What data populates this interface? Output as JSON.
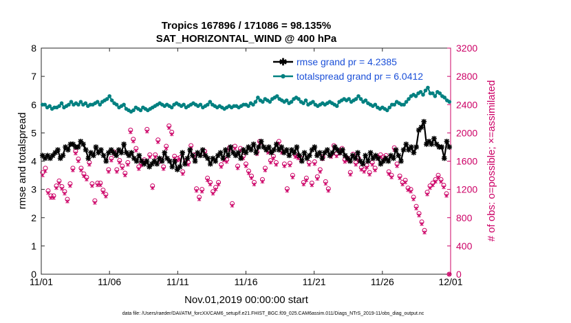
{
  "chart_data": {
    "type": "line",
    "title_line1": "Tropics 167896 / 171086 = 98.135%",
    "title_line2": "SAT_HORIZONTAL_WIND @ 400 hPa",
    "xlabel": "Nov.01,2019 00:00:00 start",
    "ylabel_left": "rmse and totalspread",
    "ylabel_right": "# of obs: o=possible; ×=assimilated",
    "footer": "data file: /Users/raeder/DAI/ATM_forcXX/CAM6_setup/f.e21.FHIST_BGC.f09_025.CAM6assim.011/Diags_NTrS_2019-11/obs_diag_output.nc",
    "xlim": [
      0,
      30
    ],
    "ylim_left": [
      0,
      8
    ],
    "ylim_right": [
      0,
      3200
    ],
    "x_ticks": [
      0,
      5,
      10,
      15,
      20,
      25,
      30
    ],
    "x_tick_labels": [
      "11/01",
      "11/06",
      "11/11",
      "11/16",
      "11/21",
      "11/26",
      "12/01"
    ],
    "y_ticks_left": [
      0,
      1,
      2,
      3,
      4,
      5,
      6,
      7,
      8
    ],
    "y_ticks_left_labels": [
      "0",
      "1",
      "2",
      "3",
      "4",
      "5",
      "6",
      "7",
      "8"
    ],
    "y_ticks_right": [
      0,
      400,
      800,
      1200,
      1600,
      2000,
      2400,
      2800,
      3200
    ],
    "y_ticks_right_labels": [
      "0",
      "400",
      "800",
      "1200",
      "1600",
      "2000",
      "2400",
      "2800",
      "3200"
    ],
    "colors": {
      "rmse": "#000000",
      "spread": "#008080",
      "obs": "#cc0066",
      "right_axis": "#cc0066"
    },
    "series": [
      {
        "name": "rmse grand pr = 4.2385",
        "axis": "left",
        "values": [
          4.2,
          4.1,
          4.2,
          4.1,
          4.2,
          4.3,
          4.4,
          4.1,
          4.2,
          4.5,
          4.4,
          4.6,
          4.6,
          4.5,
          4.5,
          4.7,
          4.6,
          4.4,
          4.1,
          4.3,
          4.2,
          4.5,
          4.3,
          4.4,
          4.2,
          4.0,
          4.3,
          4.4,
          4.3,
          4.2,
          4.4,
          4.3,
          4.6,
          4.3,
          4.2,
          4.3,
          4.1,
          4.0,
          4.2,
          4.0,
          3.9,
          4.0,
          3.8,
          3.9,
          4.0,
          3.9,
          4.1,
          4.0,
          4.3,
          4.1,
          4.0,
          3.8,
          4.0,
          3.7,
          3.8,
          4.3,
          3.9,
          4.1,
          4.4,
          4.2,
          4.0,
          4.3,
          4.2,
          4.4,
          4.2,
          4.1,
          3.9,
          4.1,
          4.0,
          4.2,
          4.3,
          4.1,
          4.4,
          4.2,
          4.5,
          4.3,
          4.2,
          4.3,
          4.1,
          4.4,
          4.3,
          4.5,
          4.4,
          4.6,
          4.3,
          4.5,
          4.7,
          4.5,
          4.4,
          4.5,
          4.3,
          4.4,
          4.6,
          4.4,
          4.5,
          4.3,
          4.4,
          4.2,
          4.4,
          4.3,
          4.5,
          4.2,
          4.0,
          4.3,
          4.1,
          4.2,
          4.4,
          4.5,
          4.2,
          4.3,
          4.1,
          4.3,
          4.4,
          4.2,
          4.3,
          4.5,
          4.4,
          4.3,
          4.4,
          4.2,
          4.1,
          4.0,
          4.2,
          4.1,
          4.3,
          4.0,
          3.9,
          4.2,
          4.0,
          4.3,
          4.1,
          4.2,
          4.1,
          3.9,
          4.0,
          4.1,
          4.0,
          4.2,
          4.1,
          4.4,
          4.2,
          4.0,
          4.4,
          4.6,
          4.4,
          4.5,
          4.3,
          4.5,
          5.1,
          5.2,
          5.4,
          4.6,
          4.7,
          4.6,
          4.8,
          4.6,
          4.5,
          4.5,
          4.1,
          4.7,
          4.5
        ]
      },
      {
        "name": "totalspread grand pr = 6.0412",
        "axis": "left",
        "values": [
          6.0,
          6.0,
          5.9,
          5.95,
          5.85,
          5.9,
          5.9,
          5.95,
          6.05,
          5.9,
          5.95,
          6.0,
          6.1,
          6.0,
          6.05,
          6.0,
          6.1,
          6.0,
          6.05,
          5.95,
          6.0,
          6.0,
          6.05,
          6.1,
          6.0,
          6.1,
          6.15,
          6.2,
          6.3,
          6.15,
          6.05,
          6.0,
          5.9,
          5.95,
          6.0,
          5.85,
          5.8,
          5.75,
          5.8,
          5.9,
          5.85,
          5.8,
          5.9,
          5.85,
          5.8,
          5.85,
          5.9,
          5.95,
          6.0,
          6.05,
          6.0,
          5.95,
          6.0,
          5.95,
          5.9,
          6.0,
          6.05,
          6.0,
          5.95,
          6.0,
          5.9,
          5.95,
          6.0,
          6.05,
          6.0,
          5.95,
          6.0,
          5.9,
          5.95,
          6.0,
          6.1,
          6.0,
          5.95,
          5.9,
          5.95,
          5.9,
          5.85,
          5.9,
          5.95,
          5.9,
          5.95,
          5.95,
          5.9,
          5.95,
          6.0,
          6.0,
          5.95,
          6.05,
          6.0,
          6.1,
          6.25,
          6.15,
          6.1,
          6.2,
          6.15,
          6.1,
          6.2,
          6.25,
          6.3,
          6.2,
          6.15,
          6.1,
          6.15,
          6.05,
          6.1,
          6.2,
          6.25,
          6.2,
          6.1,
          6.05,
          6.15,
          6.0,
          6.05,
          6.1,
          6.0,
          5.95,
          6.0,
          6.05,
          6.0,
          6.05,
          6.1,
          6.05,
          6.0,
          5.95,
          6.1,
          6.15,
          6.2,
          6.15,
          6.2,
          6.1,
          6.15,
          6.2,
          6.3,
          6.2,
          6.1,
          6.15,
          6.05,
          6.0,
          5.95,
          6.0,
          5.9,
          5.85,
          5.9,
          5.85,
          5.8,
          5.9,
          6.0,
          6.0,
          6.1,
          6.05,
          6.0,
          6.0,
          6.1,
          6.2,
          6.3,
          6.35,
          6.3,
          6.4,
          6.45,
          6.35,
          6.5,
          6.6,
          6.4,
          6.4,
          6.3,
          6.45,
          6.4,
          6.3,
          6.25,
          6.15,
          6.1
        ]
      },
      {
        "name": "possible",
        "axis": "right",
        "values": [
          1440,
          1500,
          1180,
          1110,
          1110,
          1250,
          1320,
          1240,
          1170,
          1060,
          1280,
          1500,
          1740,
          1630,
          1500,
          1420,
          1370,
          1580,
          1280,
          1040,
          1290,
          1290,
          1190,
          1130,
          1480,
          1640,
          1730,
          1480,
          1610,
          1530,
          1430,
          1580,
          2040,
          1910,
          1780,
          1520,
          1570,
          1620,
          2050,
          1690,
          1250,
          1690,
          1900,
          1620,
          1520,
          1810,
          2100,
          2010,
          1670,
          1640,
          1650,
          1450,
          1600,
          1580,
          1820,
          1690,
          1210,
          1090,
          1200,
          1740,
          1360,
          1300,
          1170,
          1230,
          1300,
          1550,
          1640,
          1620,
          1790,
          1000,
          1810,
          1530,
          1780,
          1670,
          1560,
          1460,
          1390,
          1300,
          1730,
          1880,
          1340,
          1500,
          1750,
          1610,
          1670,
          1580,
          1880,
          1750,
          1560,
          1210,
          1570,
          1400,
          1690,
          1670,
          1640,
          1300,
          1360,
          1580,
          1290,
          1590,
          1380,
          1480,
          1660,
          1310,
          1210,
          1690,
          1820,
          1700,
          1740,
          1780,
          1620,
          1640,
          1440,
          1700,
          1580,
          1640,
          1510,
          1480,
          1540,
          1440,
          1580,
          1500,
          1660,
          1690,
          1660,
          1680,
          1450,
          1400,
          1790,
          1560,
          1390,
          1300,
          1330,
          1220,
          1200,
          1090,
          960,
          860,
          740,
          620,
          1160,
          1250,
          1290,
          1340,
          1400,
          1340,
          1260,
          1140,
          0
        ]
      },
      {
        "name": "assimilated",
        "axis": "right",
        "values": [
          1400,
          1460,
          1150,
          1080,
          1080,
          1220,
          1290,
          1210,
          1140,
          1030,
          1250,
          1470,
          1710,
          1600,
          1470,
          1390,
          1340,
          1550,
          1250,
          1010,
          1260,
          1260,
          1160,
          1100,
          1450,
          1610,
          1700,
          1450,
          1580,
          1500,
          1400,
          1550,
          2010,
          1880,
          1750,
          1490,
          1540,
          1590,
          2020,
          1660,
          1220,
          1660,
          1870,
          1590,
          1490,
          1780,
          2070,
          1980,
          1640,
          1610,
          1620,
          1420,
          1570,
          1550,
          1790,
          1660,
          1180,
          1060,
          1170,
          1710,
          1330,
          1270,
          1140,
          1200,
          1270,
          1520,
          1610,
          1590,
          1760,
          970,
          1780,
          1500,
          1750,
          1640,
          1530,
          1430,
          1360,
          1270,
          1700,
          1850,
          1310,
          1470,
          1720,
          1580,
          1640,
          1550,
          1850,
          1720,
          1530,
          1180,
          1540,
          1370,
          1660,
          1640,
          1610,
          1270,
          1330,
          1550,
          1260,
          1560,
          1350,
          1450,
          1630,
          1280,
          1180,
          1660,
          1790,
          1670,
          1710,
          1750,
          1590,
          1610,
          1410,
          1670,
          1550,
          1610,
          1480,
          1450,
          1510,
          1410,
          1550,
          1470,
          1630,
          1660,
          1630,
          1650,
          1420,
          1370,
          1760,
          1530,
          1360,
          1270,
          1300,
          1190,
          1170,
          1060,
          930,
          830,
          710,
          590,
          1130,
          1220,
          1260,
          1310,
          1370,
          1310,
          1230,
          1110,
          0
        ]
      }
    ]
  }
}
